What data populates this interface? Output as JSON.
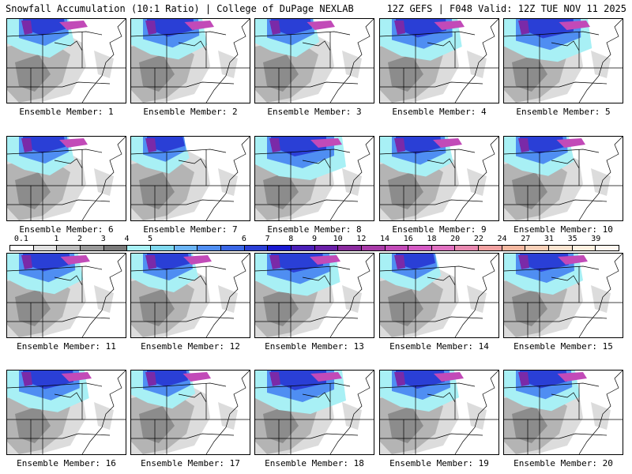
{
  "header": {
    "left_title": "Snowfall Accumulation (10:1 Ratio) | College of DuPage NEXLAB",
    "right_title": "12Z GEFS | F048 Valid: 12Z TUE NOV 11 2025"
  },
  "members": [
    {
      "label": "Ensemble Member: 1",
      "intensity": 0.6
    },
    {
      "label": "Ensemble Member: 2",
      "intensity": 0.75
    },
    {
      "label": "Ensemble Member: 3",
      "intensity": 0.55
    },
    {
      "label": "Ensemble Member: 4",
      "intensity": 0.85
    },
    {
      "label": "Ensemble Member: 5",
      "intensity": 0.95
    },
    {
      "label": "Ensemble Member: 6",
      "intensity": 0.6
    },
    {
      "label": "Ensemble Member: 7",
      "intensity": 0.45
    },
    {
      "label": "Ensemble Member: 8",
      "intensity": 1.0
    },
    {
      "label": "Ensemble Member: 9",
      "intensity": 0.7
    },
    {
      "label": "Ensemble Member: 10",
      "intensity": 0.65
    },
    {
      "label": "Ensemble Member: 11",
      "intensity": 0.75
    },
    {
      "label": "Ensemble Member: 12",
      "intensity": 0.6
    },
    {
      "label": "Ensemble Member: 13",
      "intensity": 0.9
    },
    {
      "label": "Ensemble Member: 14",
      "intensity": 0.5
    },
    {
      "label": "Ensemble Member: 15",
      "intensity": 0.8
    },
    {
      "label": "Ensemble Member: 16",
      "intensity": 0.85
    },
    {
      "label": "Ensemble Member: 17",
      "intensity": 0.55
    },
    {
      "label": "Ensemble Member: 18",
      "intensity": 1.0
    },
    {
      "label": "Ensemble Member: 19",
      "intensity": 0.8
    },
    {
      "label": "Ensemble Member: 20",
      "intensity": 0.75
    }
  ],
  "legend": {
    "labels": [
      "0.1",
      "1",
      "2",
      "3",
      "4",
      "5",
      "6",
      "7",
      "8",
      "9",
      "10",
      "12",
      "14",
      "16",
      "18",
      "20",
      "22",
      "24",
      "27",
      "31",
      "35",
      "39"
    ],
    "colors": [
      "#ffffff",
      "#e0e0e0",
      "#bdbdbd",
      "#999999",
      "#7a7a7a",
      "#a8f0f5",
      "#7fd8ee",
      "#6ab4f5",
      "#4f8ef2",
      "#3a67e6",
      "#2a3fd6",
      "#1a1ad0",
      "#4a1fb8",
      "#6a1fa8",
      "#8a2a9e",
      "#a83aa8",
      "#c24ab8",
      "#d45ac4",
      "#e070c0",
      "#e888b0",
      "#f0a0a0",
      "#f4b8a0",
      "#f8d0b8",
      "#fbe4d0",
      "#fff0e0",
      "#fff8f0"
    ]
  },
  "colors": {
    "gray_light": "#dcdcdc",
    "gray_mid": "#b4b4b4",
    "gray_dark": "#8c8c8c",
    "cyan": "#a8f0f5",
    "blue": "#4f8ef2",
    "deep_blue": "#2a3fd6",
    "purple": "#7a2aa8",
    "magenta": "#c24ab8"
  }
}
